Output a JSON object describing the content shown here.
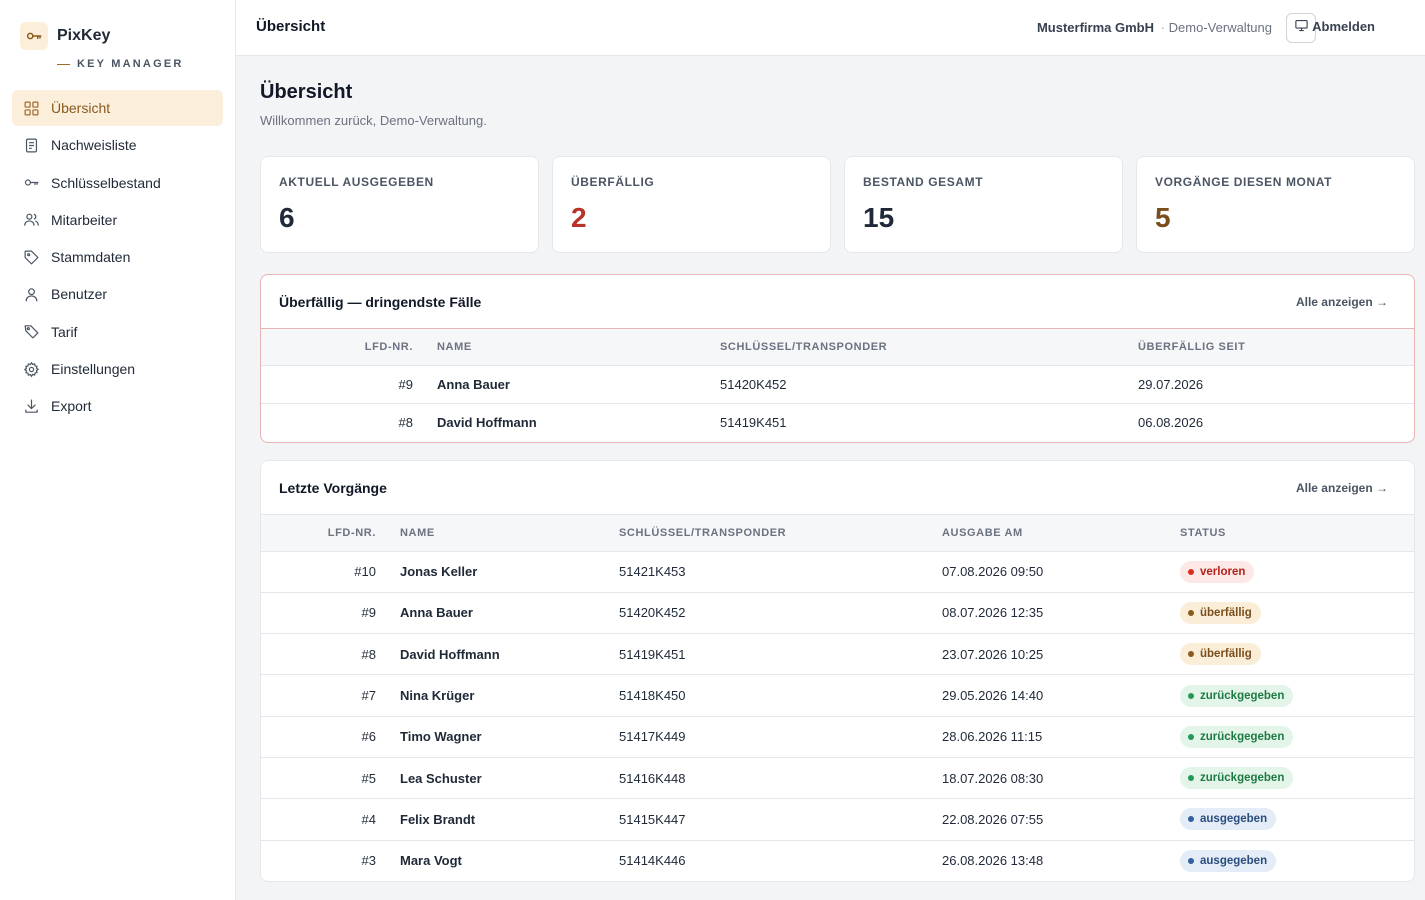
{
  "brand": {
    "name": "PixKey",
    "subtitle": "KEY MANAGER"
  },
  "nav": [
    {
      "label": "Übersicht",
      "icon": "grid-icon",
      "active": true
    },
    {
      "label": "Nachweisliste",
      "icon": "document-icon"
    },
    {
      "label": "Schlüsselbestand",
      "icon": "key-icon"
    },
    {
      "label": "Mitarbeiter",
      "icon": "users-icon"
    },
    {
      "label": "Stammdaten",
      "icon": "tag-icon"
    },
    {
      "label": "Benutzer",
      "icon": "user-icon"
    },
    {
      "label": "Tarif",
      "icon": "price-tag-icon"
    },
    {
      "label": "Einstellungen",
      "icon": "gear-icon"
    },
    {
      "label": "Export",
      "icon": "download-icon"
    }
  ],
  "header": {
    "title": "Übersicht",
    "company": "Musterfirma GmbH",
    "separator": "·",
    "role": "Demo-Verwaltung",
    "logout": "Abmelden"
  },
  "main": {
    "title": "Übersicht",
    "subtitle": "Willkommen zurück, Demo-Verwaltung."
  },
  "stats": [
    {
      "label": "AKTUELL AUSGEGEBEN",
      "value": "6",
      "color": "#1f2937"
    },
    {
      "label": "ÜBERFÄLLIG",
      "value": "2",
      "color": "#b8322a"
    },
    {
      "label": "BESTAND GESAMT",
      "value": "15",
      "color": "#1f2937"
    },
    {
      "label": "VORGÄNGE DIESEN MONAT",
      "value": "5",
      "color": "#7a4e1c"
    }
  ],
  "overdue": {
    "title": "Überfällig — dringendste Fälle",
    "link": "Alle anzeigen →",
    "columns": [
      "LFD-NR.",
      "NAME",
      "SCHLÜSSEL/TRANSPONDER",
      "ÜBERFÄLLIG SEIT"
    ],
    "rows": [
      [
        "#9",
        "Anna Bauer",
        "51420K452",
        "29.07.2026"
      ],
      [
        "#8",
        "David Hoffmann",
        "51419K451",
        "06.08.2026"
      ]
    ]
  },
  "recent": {
    "title": "Letzte Vorgänge",
    "link": "Alle anzeigen →",
    "columns": [
      "LFD-NR.",
      "NAME",
      "SCHLÜSSEL/TRANSPONDER",
      "AUSGABE AM",
      "STATUS"
    ],
    "rows": [
      [
        "#10",
        "Jonas Keller",
        "51421K453",
        "07.08.2026 09:50",
        "verloren"
      ],
      [
        "#9",
        "Anna Bauer",
        "51420K452",
        "08.07.2026 12:35",
        "überfällig"
      ],
      [
        "#8",
        "David Hoffmann",
        "51419K451",
        "23.07.2026 10:25",
        "überfällig"
      ],
      [
        "#7",
        "Nina Krüger",
        "51418K450",
        "29.05.2026 14:40",
        "zurückgegeben"
      ],
      [
        "#6",
        "Timo Wagner",
        "51417K449",
        "28.06.2026 11:15",
        "zurückgegeben"
      ],
      [
        "#5",
        "Lea Schuster",
        "51416K448",
        "18.07.2026 08:30",
        "zurückgegeben"
      ],
      [
        "#4",
        "Felix Brandt",
        "51415K447",
        "22.08.2026 07:55",
        "ausgegeben"
      ],
      [
        "#3",
        "Mara Vogt",
        "51414K446",
        "26.08.2026 13:48",
        "ausgegeben"
      ]
    ]
  },
  "status_colors": {
    "verloren": {
      "bg": "#fde8e8",
      "fg": "#b42318",
      "dot": "#d92d20"
    },
    "überfällig": {
      "bg": "#fbeed8",
      "fg": "#7a4e1c",
      "dot": "#8a5a1f"
    },
    "zurückgegeben": {
      "bg": "#e3f4e9",
      "fg": "#1e7a43",
      "dot": "#23985a"
    },
    "ausgegeben": {
      "bg": "#e3ecf7",
      "fg": "#2b4d7e",
      "dot": "#34609c"
    }
  }
}
